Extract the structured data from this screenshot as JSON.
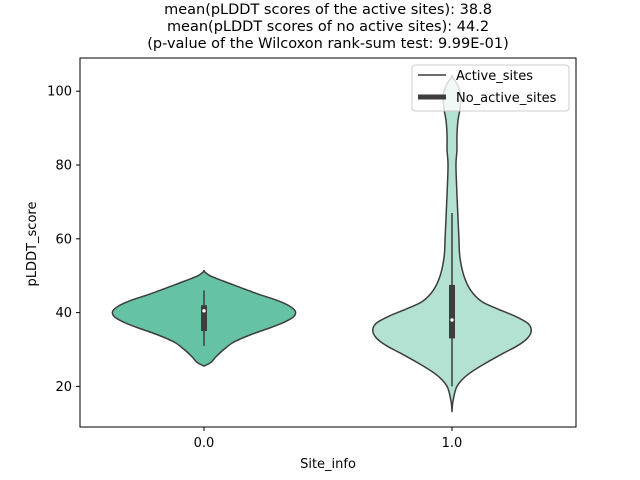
{
  "chart_data": {
    "type": "violin",
    "title_lines": [
      "mean(pLDDT scores of the active sites): 38.8",
      "mean(pLDDT scores of no active sites): 44.2",
      "(p-value of the Wilcoxon rank-sum test: 9.99E-01)"
    ],
    "xlabel": "Site_info",
    "ylabel": "pLDDT_score",
    "categories": [
      "0.0",
      "1.0"
    ],
    "ylim": [
      9,
      109
    ],
    "yticks": [
      20,
      40,
      60,
      80,
      100
    ],
    "series": [
      {
        "name": "Active_sites",
        "category": "0.0",
        "color": "#66c2a5",
        "min": 25.5,
        "max": 51.2,
        "q1": 35,
        "median": 40.5,
        "q3": 42,
        "whisker_low": 31,
        "whisker_high": 46,
        "density_profile": [
          [
            25.5,
            0.0
          ],
          [
            26.5,
            0.07
          ],
          [
            28,
            0.12
          ],
          [
            30,
            0.2
          ],
          [
            32,
            0.3
          ],
          [
            34,
            0.47
          ],
          [
            36,
            0.68
          ],
          [
            37.5,
            0.82
          ],
          [
            39,
            0.91
          ],
          [
            40.5,
            0.92
          ],
          [
            42,
            0.85
          ],
          [
            43.5,
            0.72
          ],
          [
            45,
            0.55
          ],
          [
            47,
            0.35
          ],
          [
            48.5,
            0.2
          ],
          [
            50,
            0.06
          ],
          [
            51.2,
            0.0
          ]
        ]
      },
      {
        "name": "No_active_sites",
        "category": "1.0",
        "color": "#b3e2d2",
        "min": 13.2,
        "max": 104,
        "q1": 33,
        "median": 38,
        "q3": 47.5,
        "whisker_low": 20,
        "whisker_high": 67,
        "density_profile": [
          [
            13.2,
            0.0
          ],
          [
            16,
            0.01
          ],
          [
            20,
            0.05
          ],
          [
            23,
            0.15
          ],
          [
            26,
            0.32
          ],
          [
            29,
            0.52
          ],
          [
            31,
            0.66
          ],
          [
            33,
            0.76
          ],
          [
            35,
            0.8
          ],
          [
            37,
            0.77
          ],
          [
            39,
            0.64
          ],
          [
            41,
            0.46
          ],
          [
            43,
            0.3
          ],
          [
            46,
            0.19
          ],
          [
            50,
            0.12
          ],
          [
            55,
            0.08
          ],
          [
            60,
            0.07
          ],
          [
            66,
            0.06
          ],
          [
            72,
            0.05
          ],
          [
            80,
            0.04
          ],
          [
            84,
            0.05
          ],
          [
            88,
            0.05
          ],
          [
            92,
            0.06
          ],
          [
            95,
            0.08
          ],
          [
            98,
            0.09
          ],
          [
            100,
            0.08
          ],
          [
            102,
            0.05
          ],
          [
            104,
            0.0
          ]
        ]
      }
    ],
    "legend": {
      "position": "top-right",
      "entries": [
        "Active_sites",
        "No_active_sites"
      ]
    }
  }
}
